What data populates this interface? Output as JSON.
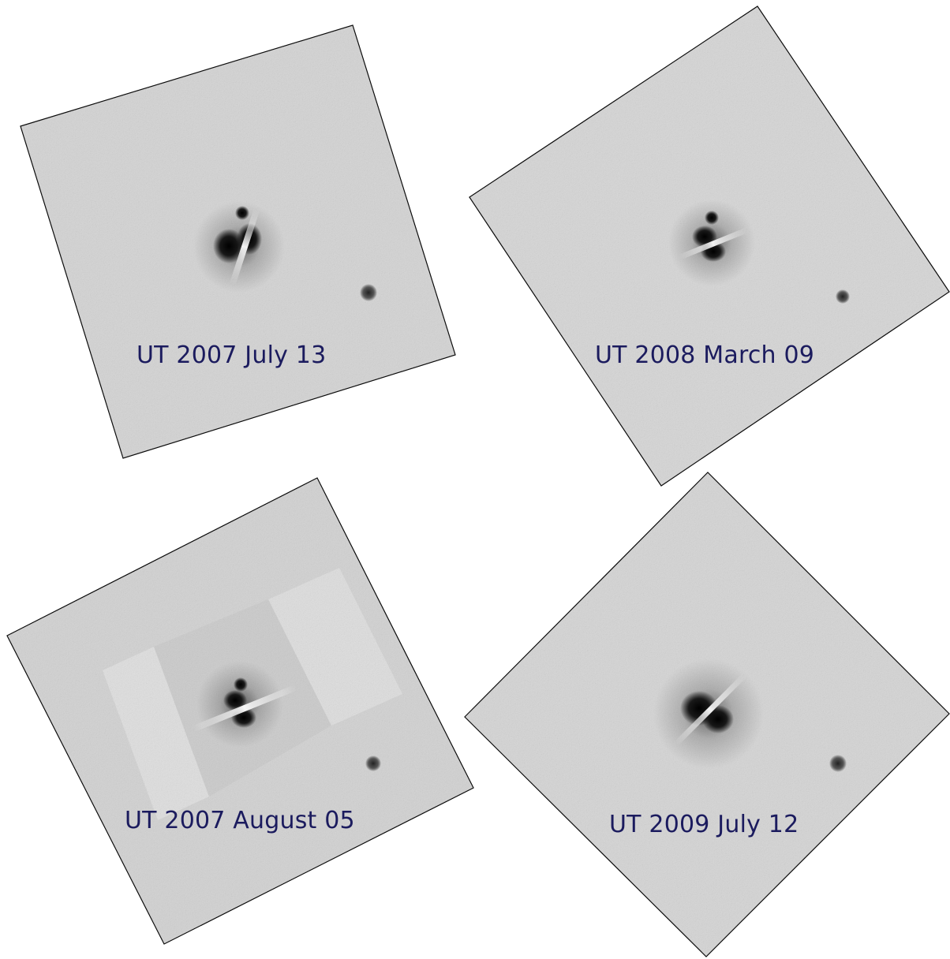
{
  "panels": [
    {
      "id": "p1",
      "caption": "UT 2007 July 13"
    },
    {
      "id": "p2",
      "caption": "UT 2008 March 09"
    },
    {
      "id": "p3",
      "caption": "UT 2007 August 05"
    },
    {
      "id": "p4",
      "caption": "UT 2009 July 12"
    }
  ],
  "colors": {
    "caption_text": "#1b1b5e",
    "frame_fill": "#d6d6d6",
    "frame_border": "#000000",
    "source": "#0a0a0a"
  }
}
